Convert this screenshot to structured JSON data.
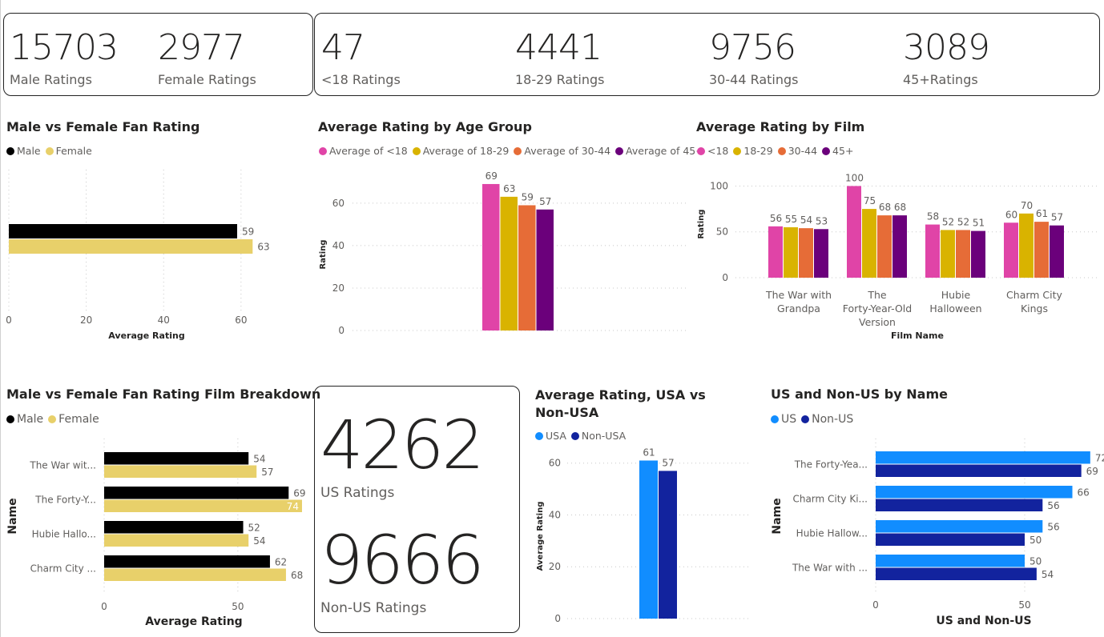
{
  "kpis_gender": [
    {
      "value": "15703",
      "label": "Male Ratings"
    },
    {
      "value": "2977",
      "label": "Female Ratings"
    }
  ],
  "kpis_age": [
    {
      "value": "47",
      "label": "<18 Ratings"
    },
    {
      "value": "4441",
      "label": "18-29 Ratings"
    },
    {
      "value": "9756",
      "label": "30-44 Ratings"
    },
    {
      "value": "3089",
      "label": "45+Ratings"
    }
  ],
  "kpis_region": [
    {
      "value": "4262",
      "label": "US Ratings"
    },
    {
      "value": "9666",
      "label": "Non-US Ratings"
    }
  ],
  "colors": {
    "male": "#000000",
    "female": "#E8D06A",
    "u18": "#E044A7",
    "a1829": "#D9B300",
    "a3044": "#E66C37",
    "a45": "#6B007B",
    "usa": "#118DFF",
    "nonusa": "#12239E"
  },
  "chart_data": [
    {
      "id": "gender",
      "type": "bar",
      "orientation": "horizontal",
      "title": "Male vs Female Fan Rating",
      "legend": [
        "Male",
        "Female"
      ],
      "series": [
        {
          "name": "Male",
          "values": [
            59
          ]
        },
        {
          "name": "Female",
          "values": [
            63
          ]
        }
      ],
      "xlabel": "Average Rating",
      "xlim": [
        0,
        65
      ],
      "xticks": [
        0,
        20,
        40,
        60
      ]
    },
    {
      "id": "age",
      "type": "bar",
      "title": "Average Rating by Age Group",
      "legend": [
        "Average of <18",
        "Average of 18-29",
        "Average of 30-44",
        "Average of 45+"
      ],
      "series": [
        {
          "name": "Average of <18",
          "values": [
            69
          ]
        },
        {
          "name": "Average of 18-29",
          "values": [
            63
          ]
        },
        {
          "name": "Average of 30-44",
          "values": [
            59
          ]
        },
        {
          "name": "Average of 45+",
          "values": [
            57
          ]
        }
      ],
      "ylabel": "Rating",
      "ylim": [
        0,
        72
      ],
      "yticks": [
        0,
        20,
        40,
        60
      ]
    },
    {
      "id": "film",
      "type": "bar",
      "title": "Average Rating by Film",
      "legend": [
        "<18",
        "18-29",
        "30-44",
        "45+"
      ],
      "categories": [
        [
          "The War with",
          "Grandpa"
        ],
        [
          "The",
          "Forty-Year-Old",
          "Version"
        ],
        [
          "Hubie",
          "Halloween"
        ],
        [
          "Charm City",
          "Kings"
        ]
      ],
      "series": [
        {
          "name": "<18",
          "values": [
            56,
            100,
            58,
            60
          ]
        },
        {
          "name": "18-29",
          "values": [
            55,
            75,
            52,
            70
          ]
        },
        {
          "name": "30-44",
          "values": [
            54,
            68,
            52,
            61
          ]
        },
        {
          "name": "45+",
          "values": [
            53,
            68,
            51,
            57
          ]
        }
      ],
      "xlabel": "Film Name",
      "ylabel": "Rating",
      "ylim": [
        0,
        110
      ],
      "yticks": [
        0,
        50,
        100
      ]
    },
    {
      "id": "genderfilm",
      "type": "bar",
      "orientation": "horizontal",
      "title": "Male vs Female Fan Rating Film Breakdown",
      "legend": [
        "Male",
        "Female"
      ],
      "categories": [
        "The War wit...",
        "The Forty-Y...",
        "Hubie Hallo...",
        "Charm City ..."
      ],
      "series": [
        {
          "name": "Male",
          "values": [
            54,
            69,
            52,
            62
          ]
        },
        {
          "name": "Female",
          "values": [
            57,
            74,
            54,
            68
          ]
        }
      ],
      "xlabel": "Average Rating",
      "ylabel": "Name",
      "xlim": [
        0,
        80
      ],
      "xticks": [
        0,
        50
      ]
    },
    {
      "id": "usa",
      "type": "bar",
      "title": [
        "Average Rating, USA vs",
        "Non-USA"
      ],
      "legend": [
        "USA",
        "Non-USA"
      ],
      "series": [
        {
          "name": "USA",
          "values": [
            61
          ]
        },
        {
          "name": "Non-USA",
          "values": [
            57
          ]
        }
      ],
      "ylabel": "Average Rating",
      "ylim": [
        0,
        63
      ],
      "yticks": [
        0,
        20,
        40,
        60
      ]
    },
    {
      "id": "usname",
      "type": "bar",
      "orientation": "horizontal",
      "title": "US and Non-US by Name",
      "legend": [
        "US",
        "Non-US"
      ],
      "categories": [
        "The Forty-Yea...",
        "Charm City Ki...",
        "Hubie Hallow...",
        "The War with ..."
      ],
      "series": [
        {
          "name": "US",
          "values": [
            72,
            66,
            56,
            50
          ]
        },
        {
          "name": "Non-US",
          "values": [
            69,
            56,
            50,
            54
          ]
        }
      ],
      "xlabel": "US and Non-US",
      "ylabel": "Name",
      "xlim": [
        0,
        75
      ],
      "xticks": [
        0,
        50
      ]
    }
  ]
}
